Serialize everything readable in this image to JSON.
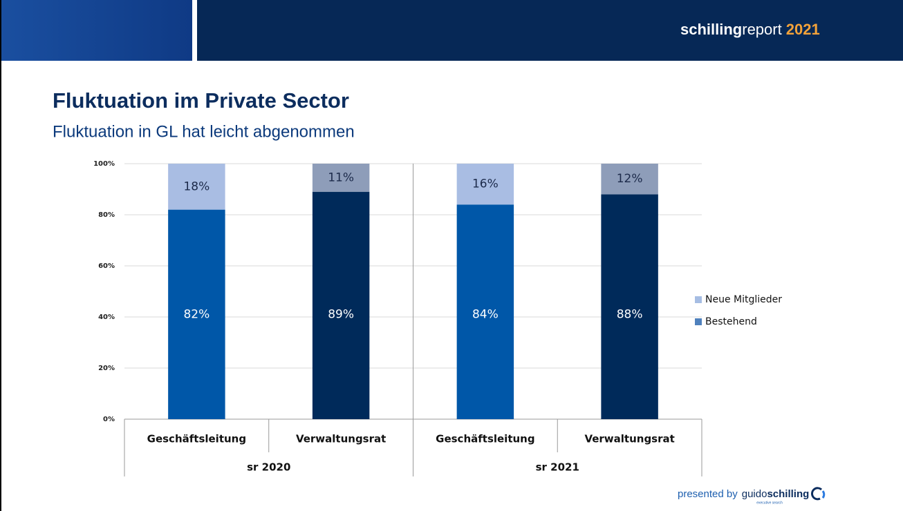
{
  "header": {
    "brand_bold": "schilling",
    "brand_light": "report",
    "year": "2021"
  },
  "footer": {
    "presented": "presented by",
    "company_light": "guido",
    "company_bold": "schilling",
    "tagline": "executive search"
  },
  "chart_data": {
    "type": "stacked_bar",
    "title": "Fluktuation im Private Sector",
    "subtitle": "Fluktuation in GL hat leicht abgenommen",
    "categories": [
      "Geschäftsleitung",
      "Verwaltungsrat",
      "Geschäftsleitung",
      "Verwaltungsrat"
    ],
    "groups": [
      "sr 2020",
      "sr 2021"
    ],
    "series": [
      {
        "name": "Bestehend",
        "color": "#4f81bd",
        "bar_colors": [
          "#0057a8",
          "#002a5a",
          "#0057a8",
          "#002a5a"
        ],
        "label_color": "#ffffff",
        "values": [
          82,
          89,
          84,
          88
        ],
        "value_labels": [
          "82%",
          "89%",
          "84%",
          "88%"
        ]
      },
      {
        "name": "Neue Mitglieder",
        "color": "#a6bde3",
        "bar_colors": [
          "#a9bde3",
          "#8e9db9",
          "#a9bde3",
          "#8e9db9"
        ],
        "label_color": "#1c2a4a",
        "values": [
          18,
          11,
          16,
          12
        ],
        "value_labels": [
          "18%",
          "11%",
          "16%",
          "12%"
        ]
      }
    ],
    "ylim": [
      0,
      100
    ],
    "yticks": [
      {
        "value": 0,
        "label": "0%"
      },
      {
        "value": 20,
        "label": "20%"
      },
      {
        "value": 40,
        "label": "40%"
      },
      {
        "value": 60,
        "label": "60%"
      },
      {
        "value": 80,
        "label": "80%"
      },
      {
        "value": 100,
        "label": "100%"
      }
    ],
    "grid": true,
    "legend": "right"
  }
}
